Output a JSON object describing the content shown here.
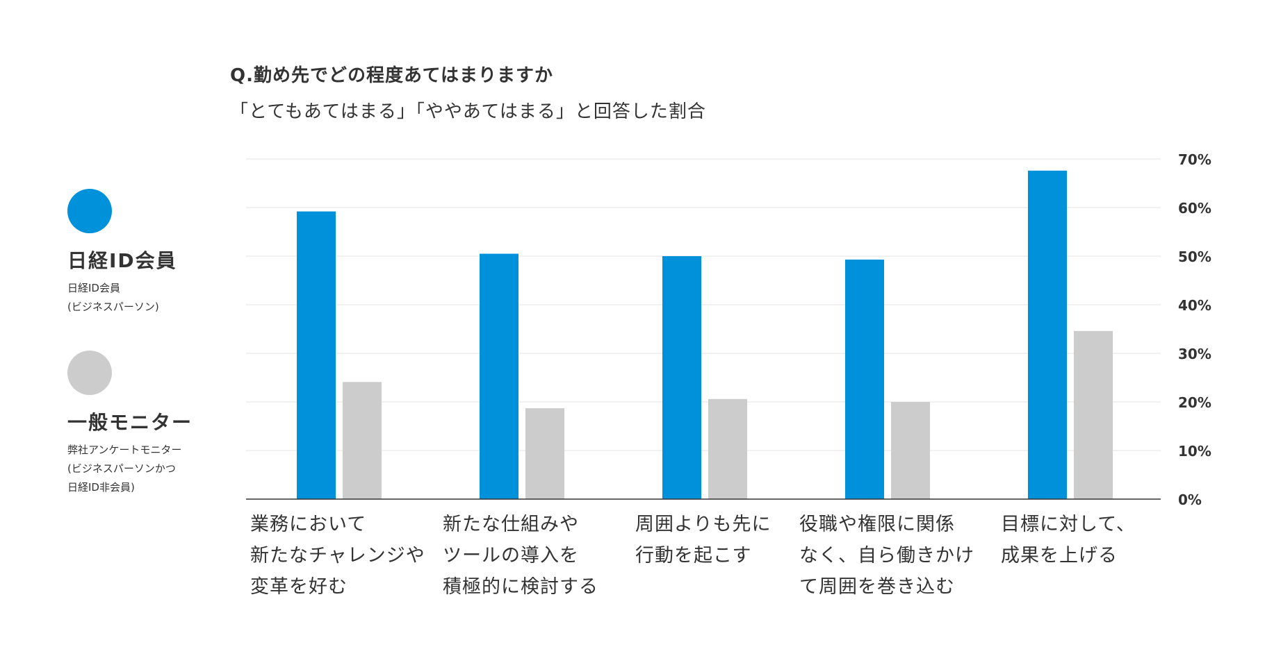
{
  "header": {
    "question": "Q.勤め先でどの程度あてはまりますか",
    "subtitle": "「とてもあてはまる」「ややあてはまる」と回答した割合"
  },
  "legend": [
    {
      "name": "日経ID会員",
      "note_lines": [
        "日経ID会員",
        "(ビジネスパーソン)"
      ],
      "color": "#0091DB"
    },
    {
      "name": "一般モニター",
      "note_lines": [
        "弊社アンケートモニター",
        "(ビジネスパーソンかつ",
        "日経ID非会員)"
      ],
      "color": "#CCCCCC"
    }
  ],
  "category_lines": [
    [
      "業務において",
      "新たなチャレンジや",
      "変革を好む"
    ],
    [
      "新たな仕組みや",
      "ツールの導入を",
      "積極的に検討する"
    ],
    [
      "周囲よりも先に",
      "行動を起こす"
    ],
    [
      "役職や権限に関係",
      "なく、自ら働きかけ",
      "て周囲を巻き込む"
    ],
    [
      "目標に対して、",
      "成果を上げる"
    ]
  ],
  "chart_data": {
    "type": "bar",
    "title": "Q.勤め先でどの程度あてはまりますか",
    "subtitle": "「とてもあてはまる」「ややあてはまる」と回答した割合",
    "categories": [
      "業務において新たなチャレンジや変革を好む",
      "新たな仕組みやツールの導入を積極的に検討する",
      "周囲よりも先に行動を起こす",
      "役職や権限に関係なく、自ら働きかけて周囲を巻き込む",
      "目標に対して、成果を上げる"
    ],
    "series": [
      {
        "name": "日経ID会員",
        "values": [
          59.2,
          50.5,
          50.0,
          49.3,
          67.6
        ],
        "color": "#0091DB"
      },
      {
        "name": "一般モニター",
        "values": [
          24.1,
          18.7,
          20.6,
          20.0,
          34.6
        ],
        "color": "#CCCCCC"
      }
    ],
    "ylim": [
      0,
      70
    ],
    "yticks": [
      "0%",
      "10%",
      "20%",
      "30%",
      "40%",
      "50%",
      "60%",
      "70%"
    ],
    "xlabel": "",
    "ylabel": "",
    "grid": true,
    "yaxis_position": "right",
    "legend_position": "left"
  }
}
